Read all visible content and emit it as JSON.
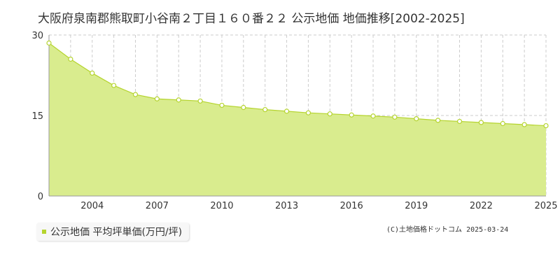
{
  "title": "大阪府泉南郡熊取町小谷南２丁目１６０番２２ 公示地価 地価推移[2002-2025]",
  "legend_label": "公示地価 平均坪単価(万円/坪)",
  "credit": "(C)土地価格ドットコム 2025-03-24",
  "colors": {
    "fill": "#d9ec8e",
    "line": "#b5d42e",
    "marker_fill": "#ffffff",
    "marker_stroke": "#b5d42e",
    "grid": "#cccccc",
    "axis": "#999999"
  },
  "chart_data": {
    "type": "area",
    "title": "大阪府泉南郡熊取町小谷南２丁目１６０番２２ 公示地価 地価推移[2002-2025]",
    "x": [
      2002,
      2003,
      2004,
      2005,
      2006,
      2007,
      2008,
      2009,
      2010,
      2011,
      2012,
      2013,
      2014,
      2015,
      2016,
      2017,
      2018,
      2019,
      2020,
      2021,
      2022,
      2023,
      2024,
      2025
    ],
    "series": [
      {
        "name": "公示地価 平均坪単価(万円/坪)",
        "values": [
          28.5,
          25.5,
          22.9,
          20.6,
          18.9,
          18.1,
          17.9,
          17.7,
          16.9,
          16.5,
          16.1,
          15.8,
          15.5,
          15.3,
          15.1,
          14.9,
          14.7,
          14.4,
          14.1,
          13.9,
          13.7,
          13.5,
          13.3,
          13.1
        ]
      }
    ],
    "x_ticks": [
      "2004",
      "2007",
      "2010",
      "2013",
      "2016",
      "2019",
      "2022",
      "2025"
    ],
    "x_tick_values": [
      2004,
      2007,
      2010,
      2013,
      2016,
      2019,
      2022,
      2025
    ],
    "y_ticks": [
      "0",
      "15",
      "30"
    ],
    "y_tick_values": [
      0,
      15,
      30
    ],
    "xlim": [
      2002,
      2025
    ],
    "ylim": [
      0,
      30
    ],
    "grid": true,
    "legend_position": "bottom-left"
  }
}
